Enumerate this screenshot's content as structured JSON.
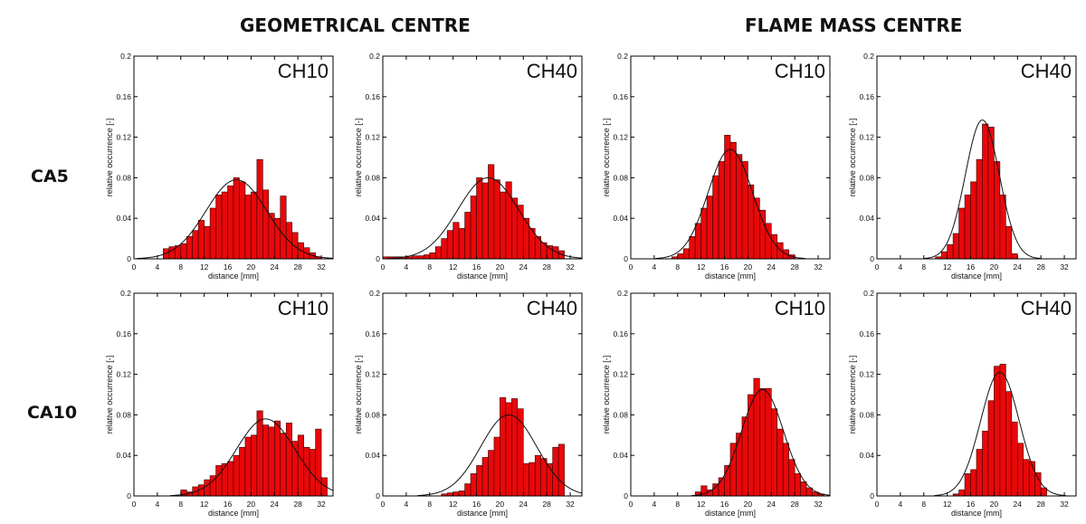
{
  "headings": {
    "left": "GEOMETRICAL CENTRE",
    "right": "FLAME MASS CENTRE"
  },
  "row_labels": [
    "CA5",
    "CA10"
  ],
  "colors": {
    "bar_fill": "#e8080a",
    "bar_stroke": "#3a0000",
    "curve": "#111111",
    "frame": "#000000"
  },
  "chart_data": [
    {
      "type": "bar",
      "panel": "CA5 · geometrical centre",
      "title": "CH10",
      "xlabel": "distance [mm]",
      "ylabel": "relative occurrence [-]",
      "xlim": [
        0,
        34
      ],
      "ylim": [
        0,
        0.2
      ],
      "xticks": [
        "0",
        "4",
        "8",
        "12",
        "16",
        "20",
        "24",
        "28",
        "32"
      ],
      "yticks": [
        "0",
        "0.04",
        "0.08",
        "0.12",
        "0.16",
        "0.2"
      ],
      "bin_start": 5,
      "bin_width": 1,
      "values": [
        0.01,
        0.012,
        0.013,
        0.015,
        0.022,
        0.028,
        0.038,
        0.032,
        0.05,
        0.063,
        0.066,
        0.072,
        0.08,
        0.076,
        0.063,
        0.066,
        0.098,
        0.068,
        0.045,
        0.04,
        0.062,
        0.036,
        0.026,
        0.016,
        0.011,
        0.006,
        0.002
      ],
      "fit": {
        "mean": 17.5,
        "sd": 5.2,
        "peak": 0.078
      }
    },
    {
      "type": "bar",
      "panel": "CA5 · geometrical centre",
      "title": "CH40",
      "xlabel": "distance [mm]",
      "ylabel": "relative occurrence [-]",
      "xlim": [
        0,
        34
      ],
      "ylim": [
        0,
        0.2
      ],
      "xticks": [
        "0",
        "4",
        "8",
        "12",
        "16",
        "20",
        "24",
        "28",
        "32"
      ],
      "yticks": [
        "0",
        "0.04",
        "0.08",
        "0.12",
        "0.16",
        "0.2"
      ],
      "bin_start": 0,
      "bin_width": 1,
      "values": [
        0.002,
        0.002,
        0.002,
        0.002,
        0.002,
        0.003,
        0.003,
        0.004,
        0.006,
        0.012,
        0.02,
        0.028,
        0.036,
        0.03,
        0.046,
        0.062,
        0.08,
        0.075,
        0.093,
        0.078,
        0.066,
        0.076,
        0.06,
        0.053,
        0.04,
        0.03,
        0.022,
        0.016,
        0.013,
        0.012,
        0.008
      ],
      "fit": {
        "mean": 18.0,
        "sd": 5.2,
        "peak": 0.08
      }
    },
    {
      "type": "bar",
      "panel": "CA5 · flame mass centre",
      "title": "CH10",
      "xlabel": "distance [mm]",
      "ylabel": "relative occurrence [-]",
      "xlim": [
        0,
        34
      ],
      "ylim": [
        0,
        0.2
      ],
      "xticks": [
        "0",
        "4",
        "8",
        "12",
        "16",
        "20",
        "24",
        "28",
        "32"
      ],
      "yticks": [
        "0",
        "0.04",
        "0.08",
        "0.12",
        "0.16",
        "0.2"
      ],
      "bin_start": 7,
      "bin_width": 1,
      "values": [
        0.002,
        0.005,
        0.01,
        0.022,
        0.035,
        0.05,
        0.062,
        0.082,
        0.096,
        0.122,
        0.115,
        0.103,
        0.096,
        0.073,
        0.06,
        0.048,
        0.035,
        0.024,
        0.016,
        0.009,
        0.004
      ],
      "fit": {
        "mean": 17.0,
        "sd": 3.8,
        "peak": 0.108
      }
    },
    {
      "type": "bar",
      "panel": "CA5 · flame mass centre",
      "title": "CH40",
      "xlabel": "distance [mm]",
      "ylabel": "relative occurrence [-]",
      "xlim": [
        0,
        34
      ],
      "ylim": [
        0,
        0.2
      ],
      "xticks": [
        "0",
        "4",
        "8",
        "12",
        "16",
        "20",
        "24",
        "28",
        "32"
      ],
      "yticks": [
        "0",
        "0.04",
        "0.08",
        "0.12",
        "0.16",
        "0.2"
      ],
      "bin_start": 10,
      "bin_width": 1,
      "values": [
        0.002,
        0.007,
        0.014,
        0.025,
        0.05,
        0.063,
        0.076,
        0.098,
        0.133,
        0.13,
        0.096,
        0.063,
        0.032,
        0.005
      ],
      "fit": {
        "mean": 18.0,
        "sd": 2.9,
        "peak": 0.137
      }
    },
    {
      "type": "bar",
      "panel": "CA10 · geometrical centre",
      "title": "CH10",
      "xlabel": "distance [mm]",
      "ylabel": "relative occurrence [-]",
      "xlim": [
        0,
        34
      ],
      "ylim": [
        0,
        0.2
      ],
      "xticks": [
        "0",
        "4",
        "8",
        "12",
        "16",
        "20",
        "24",
        "28",
        "32"
      ],
      "yticks": [
        "0",
        "0.04",
        "0.08",
        "0.12",
        "0.16",
        "0.2"
      ],
      "bin_start": 8,
      "bin_width": 1,
      "values": [
        0.006,
        0.004,
        0.009,
        0.011,
        0.016,
        0.02,
        0.03,
        0.032,
        0.034,
        0.04,
        0.048,
        0.058,
        0.06,
        0.084,
        0.07,
        0.068,
        0.074,
        0.062,
        0.072,
        0.054,
        0.06,
        0.048,
        0.046,
        0.066,
        0.018
      ],
      "fit": {
        "mean": 22.5,
        "sd": 5.0,
        "peak": 0.076
      }
    },
    {
      "type": "bar",
      "panel": "CA10 · geometrical centre",
      "title": "CH40",
      "xlabel": "distance [mm]",
      "ylabel": "relative occurrence [-]",
      "xlim": [
        0,
        34
      ],
      "ylim": [
        0,
        0.2
      ],
      "xticks": [
        "0",
        "4",
        "8",
        "12",
        "16",
        "20",
        "24",
        "28",
        "32"
      ],
      "yticks": [
        "0",
        "0.04",
        "0.08",
        "0.12",
        "0.16",
        "0.2"
      ],
      "bin_start": 10,
      "bin_width": 1,
      "values": [
        0.002,
        0.003,
        0.004,
        0.005,
        0.012,
        0.022,
        0.03,
        0.038,
        0.045,
        0.058,
        0.097,
        0.092,
        0.096,
        0.086,
        0.032,
        0.033,
        0.04,
        0.037,
        0.032,
        0.048,
        0.051
      ],
      "fit": {
        "mean": 21.5,
        "sd": 4.8,
        "peak": 0.08
      }
    },
    {
      "type": "bar",
      "panel": "CA10 · flame mass centre",
      "title": "CH10",
      "xlabel": "distance [mm]",
      "ylabel": "relative occurrence [-]",
      "xlim": [
        0,
        34
      ],
      "ylim": [
        0,
        0.2
      ],
      "xticks": [
        "0",
        "4",
        "8",
        "12",
        "16",
        "20",
        "24",
        "28",
        "32"
      ],
      "yticks": [
        "0",
        "0.04",
        "0.08",
        "0.12",
        "0.16",
        "0.2"
      ],
      "bin_start": 11,
      "bin_width": 1,
      "values": [
        0.004,
        0.01,
        0.006,
        0.012,
        0.018,
        0.03,
        0.052,
        0.062,
        0.078,
        0.1,
        0.116,
        0.106,
        0.106,
        0.086,
        0.066,
        0.052,
        0.036,
        0.022,
        0.014,
        0.008,
        0.004,
        0.002
      ],
      "fit": {
        "mean": 22.5,
        "sd": 3.6,
        "peak": 0.105
      }
    },
    {
      "type": "bar",
      "panel": "CA10 · flame mass centre",
      "title": "CH40",
      "xlabel": "distance [mm]",
      "ylabel": "relative occurrence [-]",
      "xlim": [
        0,
        34
      ],
      "ylim": [
        0,
        0.2
      ],
      "xticks": [
        "0",
        "4",
        "8",
        "12",
        "16",
        "20",
        "24",
        "28",
        "32"
      ],
      "yticks": [
        "0",
        "0.04",
        "0.08",
        "0.12",
        "0.16",
        "0.2"
      ],
      "bin_start": 13,
      "bin_width": 1,
      "values": [
        0.002,
        0.006,
        0.022,
        0.026,
        0.046,
        0.064,
        0.094,
        0.128,
        0.13,
        0.103,
        0.073,
        0.052,
        0.036,
        0.034,
        0.023,
        0.008
      ],
      "fit": {
        "mean": 21.0,
        "sd": 3.3,
        "peak": 0.122
      }
    }
  ]
}
